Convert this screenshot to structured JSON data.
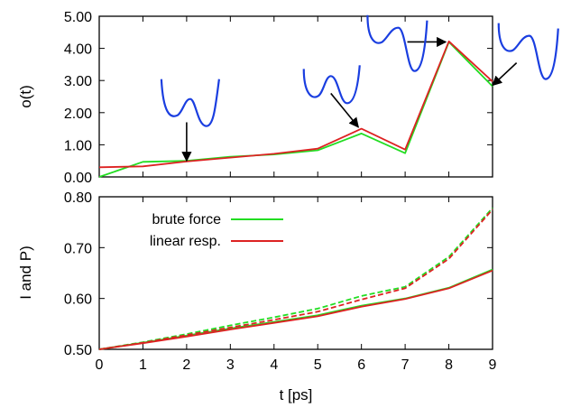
{
  "colors": {
    "brute_force": "#22dd22",
    "linear_resp": "#dd2222",
    "sketch": "#1a3ee0",
    "arrow": "#000000"
  },
  "chart_data": [
    {
      "id": "top",
      "type": "line",
      "ylabel": "o(t)",
      "xlim": [
        0,
        9
      ],
      "ylim": [
        0,
        5
      ],
      "y_ticks": [
        {
          "v": 0,
          "label": "0.00"
        },
        {
          "v": 1,
          "label": "1.00"
        },
        {
          "v": 2,
          "label": "2.00"
        },
        {
          "v": 3,
          "label": "3.00"
        },
        {
          "v": 4,
          "label": "4.00"
        },
        {
          "v": 5,
          "label": "5.00"
        }
      ],
      "x": [
        0,
        1,
        2,
        3,
        4,
        5,
        6,
        7,
        8,
        9
      ],
      "series": [
        {
          "key": "brute_force",
          "style": "solid",
          "values": [
            0.0,
            0.47,
            0.5,
            0.63,
            0.7,
            0.83,
            1.35,
            0.74,
            4.2,
            2.82
          ]
        },
        {
          "key": "linear_resp",
          "style": "solid",
          "values": [
            0.3,
            0.33,
            0.48,
            0.6,
            0.72,
            0.88,
            1.5,
            0.85,
            4.22,
            2.97
          ]
        }
      ],
      "annotations": [
        {
          "tip": [
            2.0,
            0.5
          ],
          "from": [
            2.0,
            1.7
          ],
          "sketch_at": [
            2.0,
            2.2
          ],
          "shape": "symmetric-well"
        },
        {
          "tip": [
            5.93,
            1.55
          ],
          "from": [
            5.3,
            2.6
          ],
          "sketch_at": [
            5.3,
            2.8
          ],
          "shape": "asymmetric-well"
        },
        {
          "tip": [
            7.93,
            4.2
          ],
          "from": [
            7.05,
            4.2
          ],
          "sketch_at": [
            6.8,
            4.25
          ],
          "shape": "deep-right-well"
        },
        {
          "tip": [
            9.0,
            2.85
          ],
          "from": [
            9.55,
            3.55
          ],
          "sketch_at": [
            9.8,
            4.0
          ],
          "shape": "deep-right-well"
        }
      ]
    },
    {
      "id": "bottom",
      "type": "line",
      "xlabel": "t [ps]",
      "ylabel": "I and P)",
      "xlim": [
        0,
        9
      ],
      "ylim": [
        0.5,
        0.8
      ],
      "x_ticks": [
        "0",
        "1",
        "2",
        "3",
        "4",
        "5",
        "6",
        "7",
        "8",
        "9"
      ],
      "y_ticks": [
        {
          "v": 0.5,
          "label": "0.50"
        },
        {
          "v": 0.6,
          "label": "0.60"
        },
        {
          "v": 0.7,
          "label": "0.70"
        },
        {
          "v": 0.8,
          "label": "0.80"
        }
      ],
      "x": [
        0,
        1,
        2,
        3,
        4,
        5,
        6,
        7,
        8,
        9
      ],
      "series": [
        {
          "key": "brute_force",
          "style": "solid",
          "values": [
            0.5,
            0.513,
            0.527,
            0.541,
            0.554,
            0.567,
            0.586,
            0.6,
            0.621,
            0.657
          ]
        },
        {
          "key": "linear_resp",
          "style": "solid",
          "values": [
            0.5,
            0.512,
            0.525,
            0.539,
            0.552,
            0.565,
            0.584,
            0.599,
            0.62,
            0.655
          ]
        },
        {
          "key": "brute_force",
          "style": "dashed",
          "values": [
            0.5,
            0.514,
            0.53,
            0.547,
            0.563,
            0.58,
            0.605,
            0.623,
            0.682,
            0.778
          ]
        },
        {
          "key": "linear_resp",
          "style": "dashed",
          "values": [
            0.5,
            0.513,
            0.528,
            0.543,
            0.558,
            0.574,
            0.598,
            0.62,
            0.678,
            0.775
          ]
        }
      ],
      "legend": {
        "position": "top-left",
        "entries": [
          {
            "key": "brute_force",
            "label": "brute force"
          },
          {
            "key": "linear_resp",
            "label": "linear resp."
          }
        ]
      }
    }
  ]
}
